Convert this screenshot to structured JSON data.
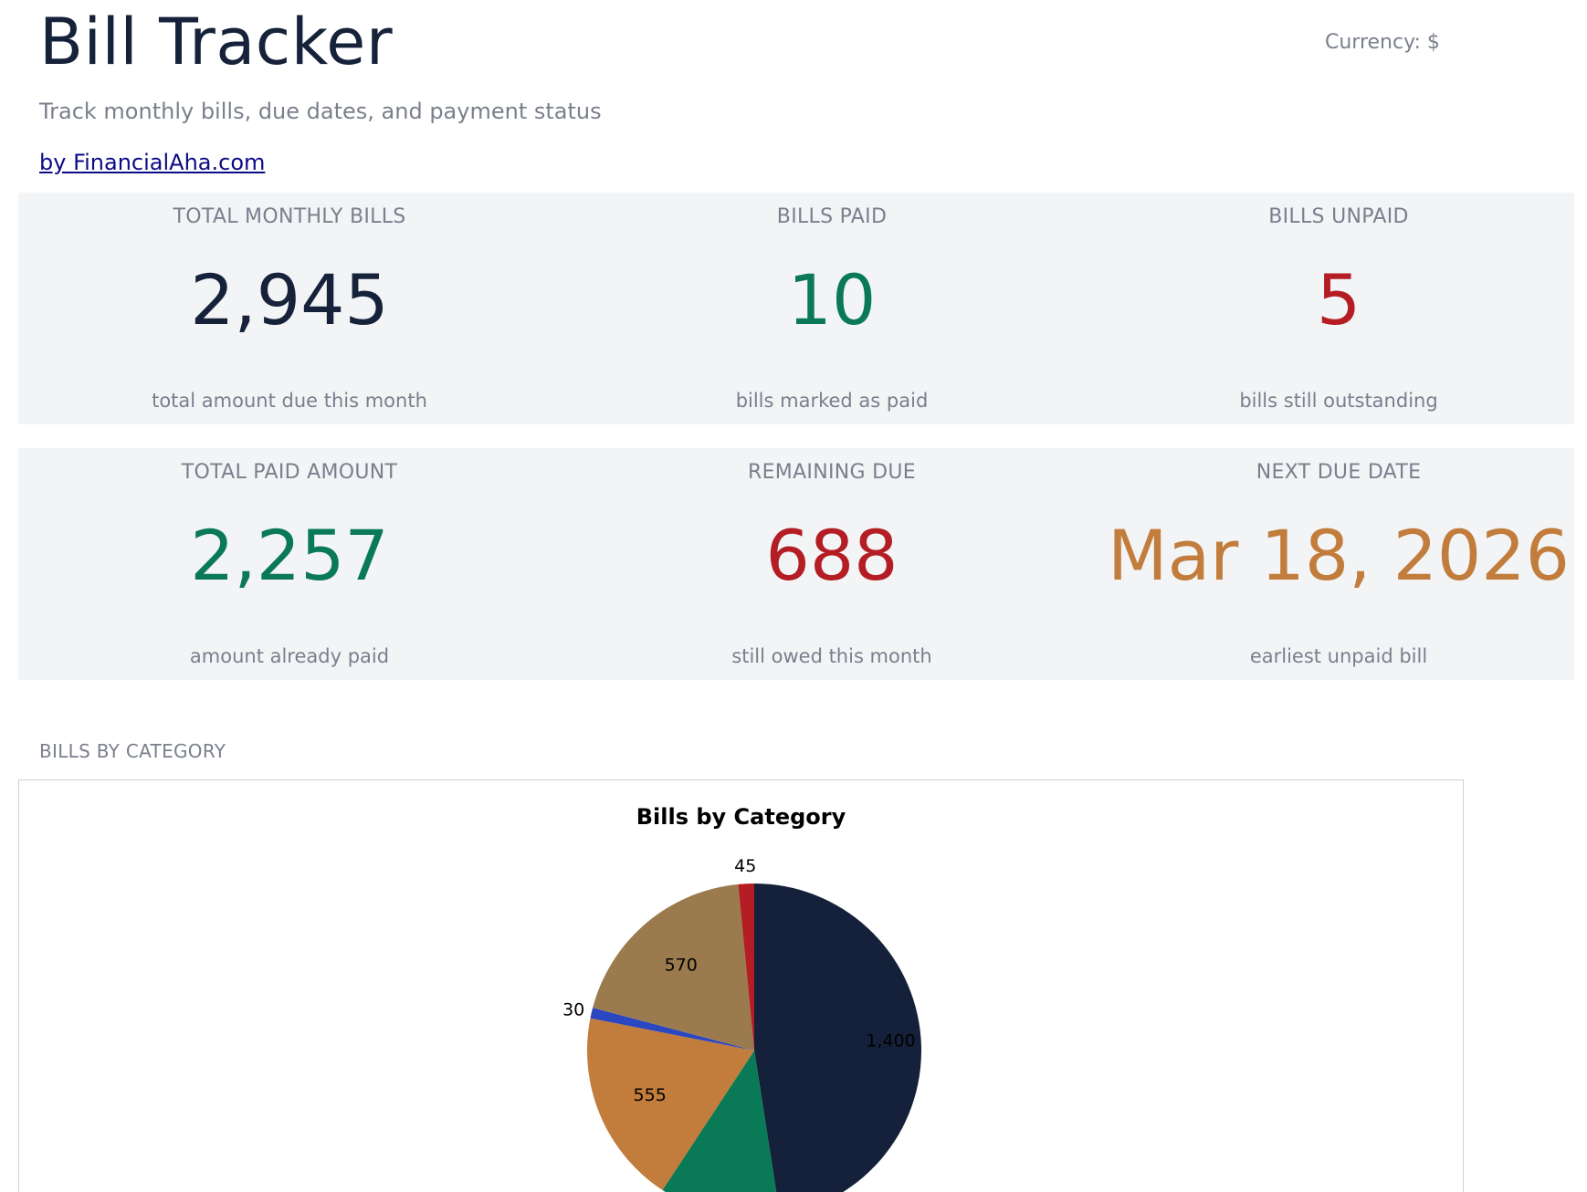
{
  "header": {
    "title": "Bill Tracker",
    "subtitle": "Track monthly bills, due dates, and payment status",
    "byline": "by FinancialAha.com",
    "currency": "Currency: $"
  },
  "kpis": [
    {
      "label": "TOTAL MONTHLY BILLS",
      "value": "2,945",
      "note": "total amount due this month",
      "color": "#16213a"
    },
    {
      "label": "BILLS PAID",
      "value": "10",
      "note": "bills marked as paid",
      "color": "#0a7a56"
    },
    {
      "label": "BILLS UNPAID",
      "value": "5",
      "note": "bills still outstanding",
      "color": "#b31d23"
    },
    {
      "label": "TOTAL PAID AMOUNT",
      "value": "2,257",
      "note": "amount already paid",
      "color": "#0a7a56"
    },
    {
      "label": "REMAINING DUE",
      "value": "688",
      "note": "still owed this month",
      "color": "#b31d23"
    },
    {
      "label": "NEXT DUE DATE",
      "value": "Mar 18, 2026",
      "note": "earliest unpaid bill",
      "color": "#c27c3b"
    }
  ],
  "section": {
    "label": "BILLS BY CATEGORY"
  },
  "chart_data": {
    "type": "pie",
    "title": "Bills by Category",
    "start_angle_deg": 90,
    "direction": "clockwise",
    "slices": [
      {
        "value": 1400,
        "label": "1,400",
        "color": "#15213a"
      },
      {
        "value": 345,
        "label": "",
        "color": "#0a7a56"
      },
      {
        "value": 555,
        "label": "555",
        "color": "#c27c3b"
      },
      {
        "value": 30,
        "label": "30",
        "color": "#2a46c0"
      },
      {
        "value": 570,
        "label": "570",
        "color": "#9b7a4e"
      },
      {
        "value": 45,
        "label": "45",
        "color": "#b31d23"
      }
    ]
  }
}
